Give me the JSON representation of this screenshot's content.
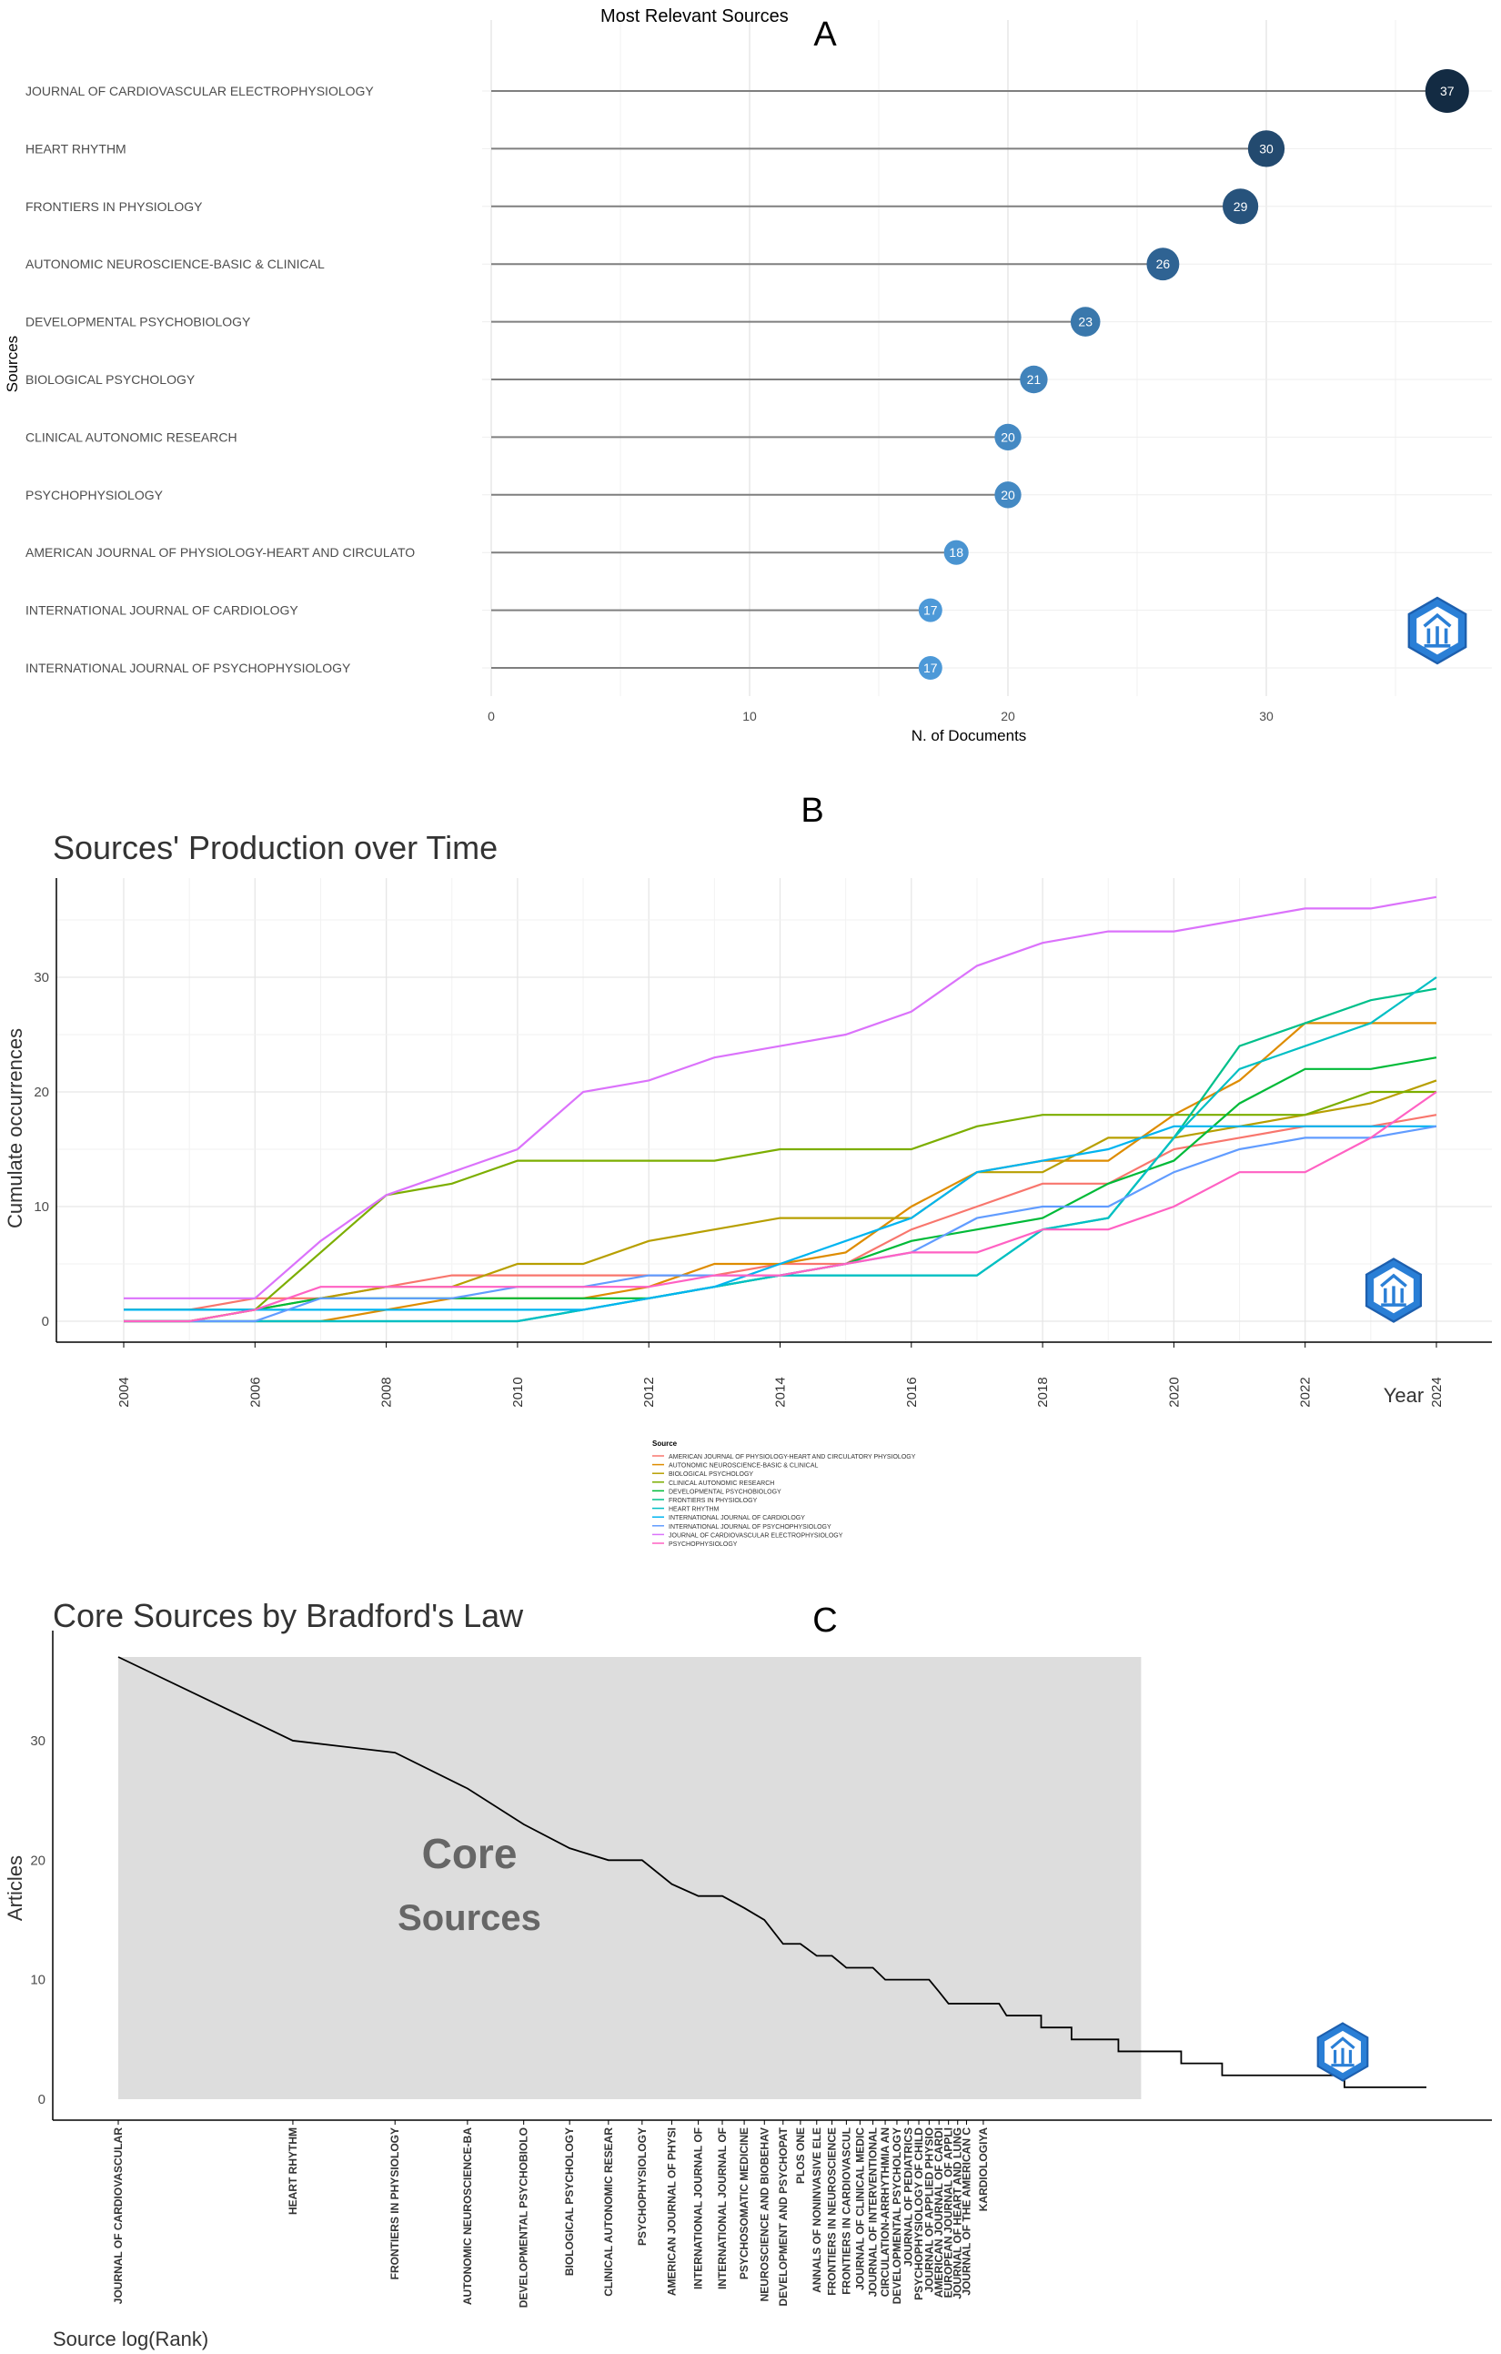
{
  "chart_data": [
    {
      "id": "A",
      "panel_letter": "A",
      "type": "lollipop",
      "title": "Most Relevant Sources",
      "xlabel": "N. of Documents",
      "ylabel": "Sources",
      "xlim": [
        0,
        38
      ],
      "xticks": [
        0,
        10,
        20,
        30
      ],
      "categories": [
        "JOURNAL OF CARDIOVASCULAR ELECTROPHYSIOLOGY",
        "HEART RHYTHM",
        "FRONTIERS IN PHYSIOLOGY",
        "AUTONOMIC NEUROSCIENCE-BASIC & CLINICAL",
        "DEVELOPMENTAL PSYCHOBIOLOGY",
        "BIOLOGICAL PSYCHOLOGY",
        "CLINICAL AUTONOMIC RESEARCH",
        "PSYCHOPHYSIOLOGY",
        "AMERICAN JOURNAL OF PHYSIOLOGY-HEART AND CIRCULATO",
        "INTERNATIONAL JOURNAL OF CARDIOLOGY",
        "INTERNATIONAL JOURNAL OF PSYCHOPHYSIOLOGY"
      ],
      "values": [
        37,
        30,
        29,
        26,
        23,
        21,
        20,
        20,
        18,
        17,
        17
      ],
      "colors": [
        "#132B43",
        "#234a6f",
        "#27537c",
        "#2f6393",
        "#3a78ac",
        "#4183bb",
        "#4489c3",
        "#4489c3",
        "#4a94d1",
        "#4d99d8",
        "#4d99d8"
      ]
    },
    {
      "id": "B",
      "panel_letter": "B",
      "type": "line",
      "title": "Sources' Production over Time",
      "xlabel": "Year",
      "ylabel": "Cumulate occurrences",
      "xlim": [
        2004,
        2024
      ],
      "ylim": [
        0,
        38
      ],
      "xticks": [
        2004,
        2006,
        2008,
        2010,
        2012,
        2014,
        2016,
        2018,
        2020,
        2022,
        2024
      ],
      "yticks": [
        0,
        10,
        20,
        30
      ],
      "legend_title": "Source",
      "legend_position": "bottom",
      "x": [
        2004,
        2005,
        2006,
        2007,
        2008,
        2009,
        2010,
        2011,
        2012,
        2013,
        2014,
        2015,
        2016,
        2017,
        2018,
        2019,
        2020,
        2021,
        2022,
        2023,
        2024
      ],
      "series": [
        {
          "name": "AMERICAN JOURNAL OF PHYSIOLOGY-HEART AND CIRCULATORY PHYSIOLOGY",
          "color": "#F8766D",
          "values": [
            1,
            1,
            2,
            2,
            3,
            4,
            4,
            4,
            4,
            4,
            5,
            5,
            8,
            10,
            12,
            12,
            15,
            16,
            17,
            17,
            18
          ]
        },
        {
          "name": "AUTONOMIC NEUROSCIENCE-BASIC & CLINICAL",
          "color": "#DE8C00",
          "values": [
            0,
            0,
            0,
            0,
            1,
            2,
            2,
            2,
            3,
            5,
            5,
            6,
            10,
            13,
            14,
            14,
            18,
            21,
            26,
            26,
            26
          ]
        },
        {
          "name": "BIOLOGICAL PSYCHOLOGY",
          "color": "#B79F00",
          "values": [
            0,
            0,
            1,
            2,
            3,
            3,
            5,
            5,
            7,
            8,
            9,
            9,
            9,
            13,
            13,
            16,
            16,
            17,
            18,
            19,
            21
          ]
        },
        {
          "name": "CLINICAL AUTONOMIC RESEARCH",
          "color": "#7CAE00",
          "values": [
            0,
            0,
            1,
            6,
            11,
            12,
            14,
            14,
            14,
            14,
            15,
            15,
            15,
            17,
            18,
            18,
            18,
            18,
            18,
            20,
            20
          ]
        },
        {
          "name": "DEVELOPMENTAL PSYCHOBIOLOGY",
          "color": "#00BA38",
          "values": [
            1,
            1,
            1,
            2,
            2,
            2,
            2,
            2,
            2,
            3,
            4,
            5,
            7,
            8,
            9,
            12,
            14,
            19,
            22,
            22,
            23
          ]
        },
        {
          "name": "FRONTIERS IN PHYSIOLOGY",
          "color": "#00C08B",
          "values": [
            0,
            0,
            0,
            0,
            0,
            0,
            0,
            1,
            2,
            3,
            4,
            4,
            4,
            4,
            8,
            9,
            16,
            24,
            26,
            28,
            29
          ]
        },
        {
          "name": "HEART RHYTHM",
          "color": "#00BFC4",
          "values": [
            0,
            0,
            0,
            0,
            0,
            0,
            0,
            1,
            2,
            3,
            4,
            4,
            4,
            4,
            8,
            9,
            16,
            22,
            24,
            26,
            30
          ]
        },
        {
          "name": "INTERNATIONAL JOURNAL OF CARDIOLOGY",
          "color": "#00B4F0",
          "values": [
            1,
            1,
            1,
            1,
            1,
            1,
            1,
            1,
            2,
            3,
            5,
            7,
            9,
            13,
            14,
            15,
            17,
            17,
            17,
            17,
            17
          ]
        },
        {
          "name": "INTERNATIONAL JOURNAL OF PSYCHOPHYSIOLOGY",
          "color": "#619CFF",
          "values": [
            0,
            0,
            0,
            2,
            2,
            2,
            3,
            3,
            4,
            4,
            4,
            5,
            6,
            9,
            10,
            10,
            13,
            15,
            16,
            16,
            17
          ]
        },
        {
          "name": "JOURNAL OF CARDIOVASCULAR ELECTROPHYSIOLOGY",
          "color": "#DB72FB",
          "values": [
            2,
            2,
            2,
            7,
            11,
            13,
            15,
            20,
            21,
            23,
            24,
            25,
            27,
            31,
            33,
            34,
            34,
            35,
            36,
            36,
            37
          ]
        },
        {
          "name": "PSYCHOPHYSIOLOGY",
          "color": "#FF61C3",
          "values": [
            0,
            0,
            1,
            3,
            3,
            3,
            3,
            3,
            3,
            4,
            4,
            5,
            6,
            6,
            8,
            8,
            10,
            13,
            13,
            16,
            20
          ]
        }
      ]
    },
    {
      "id": "C",
      "panel_letter": "C",
      "type": "step",
      "title": "Core Sources by Bradford's Law",
      "xlabel": "Source log(Rank)",
      "ylabel": "Articles",
      "ylim": [
        0,
        38
      ],
      "yticks": [
        0,
        10,
        20,
        30
      ],
      "core_label_line1": "Core",
      "core_label_line2": "Sources",
      "core_zone_max_rank": 58,
      "max_rank": 180,
      "rank_labels": [
        "JOURNAL OF CARDIOVASCULAR",
        "HEART RHYTHM",
        "FRONTIERS IN PHYSIOLOGY",
        "AUTONOMIC NEUROSCIENCE-BA",
        "DEVELOPMENTAL PSYCHOBIOLO",
        "BIOLOGICAL PSYCHOLOGY",
        "CLINICAL AUTONOMIC RESEAR",
        "PSYCHOPHYSIOLOGY",
        "AMERICAN JOURNAL OF PHYSI",
        "INTERNATIONAL JOURNAL OF",
        "INTERNATIONAL JOURNAL OF",
        "PSYCHOSOMATIC MEDICINE",
        "NEUROSCIENCE AND BIOBEHAV",
        "DEVELOPMENT AND PSYCHOPAT",
        "PLOS ONE",
        "ANNALS OF NONINVASIVE ELE",
        "FRONTIERS IN NEUROSCIENCE",
        "FRONTIERS IN CARDIOVASCUL",
        "JOURNAL OF CLINICAL MEDIC",
        "JOURNAL OF INTERVENTIONAL",
        "CIRCULATION-ARRHYTHMIA AN",
        "DEVELOPMENTAL PSYCHOLOGY",
        "JOURNAL OF PEDIATRICS",
        "PSYCHOPHYSIOLOGY OF CHILD",
        "JOURNAL OF APPLIED PHYSIO",
        "AMERICAN JOURNAL OF CARDI",
        "EUROPEAN JOURNAL OF APPLI",
        "JOURNAL OF HEART AND LUNG",
        "JOURNAL OF THE AMERICAN C",
        "KARDIOLOGIYA"
      ],
      "rank_positions": [
        1,
        2,
        3,
        4,
        5,
        6,
        7,
        8,
        9,
        10,
        11,
        12,
        13,
        14,
        15,
        16,
        17,
        18,
        19,
        20,
        21,
        22,
        23,
        24,
        25,
        26,
        27,
        28,
        29,
        31
      ],
      "steps": [
        {
          "rank": 1,
          "articles": 37
        },
        {
          "rank": 2,
          "articles": 30
        },
        {
          "rank": 3,
          "articles": 29
        },
        {
          "rank": 4,
          "articles": 26
        },
        {
          "rank": 5,
          "articles": 23
        },
        {
          "rank": 6,
          "articles": 21
        },
        {
          "rank": 7,
          "articles": 20
        },
        {
          "rank": 8,
          "articles": 20
        },
        {
          "rank": 9,
          "articles": 18
        },
        {
          "rank": 10,
          "articles": 17
        },
        {
          "rank": 11,
          "articles": 17
        },
        {
          "rank": 12,
          "articles": 16
        },
        {
          "rank": 13,
          "articles": 15
        },
        {
          "rank": 14,
          "articles": 13
        },
        {
          "rank": 15,
          "articles": 13
        },
        {
          "rank": 16,
          "articles": 12
        },
        {
          "rank": 17,
          "articles": 12
        },
        {
          "rank": 18,
          "articles": 11
        },
        {
          "rank": 19,
          "articles": 11
        },
        {
          "rank": 20,
          "articles": 11
        },
        {
          "rank": 21,
          "articles": 10
        },
        {
          "rank": 25,
          "articles": 10
        },
        {
          "rank": 26,
          "articles": 9
        },
        {
          "rank": 27,
          "articles": 8
        },
        {
          "rank": 33,
          "articles": 8
        },
        {
          "rank": 34,
          "articles": 7
        },
        {
          "rank": 39,
          "articles": 6
        },
        {
          "rank": 44,
          "articles": 5
        },
        {
          "rank": 53,
          "articles": 4
        },
        {
          "rank": 68,
          "articles": 3
        },
        {
          "rank": 80,
          "articles": 2
        },
        {
          "rank": 130,
          "articles": 1
        },
        {
          "rank": 180,
          "articles": 1
        }
      ]
    }
  ]
}
